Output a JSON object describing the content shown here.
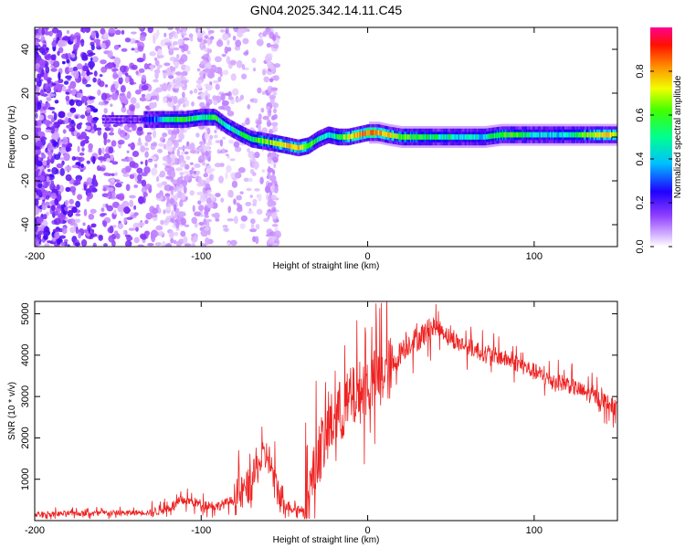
{
  "figure_title": "GN04.2025.342.14.11.C45",
  "chart_data": [
    {
      "type": "heatmap",
      "title": "GN04.2025.342.14.11.C45",
      "xlabel": "Height of straight line (km)",
      "ylabel": "Frequency (Hz)",
      "xlim": [
        -200,
        150
      ],
      "ylim": [
        -50,
        50
      ],
      "xticks": [
        -200,
        -100,
        0,
        100
      ],
      "xtick_labels": [
        "-200",
        "-100",
        "0",
        "100"
      ],
      "yticks": [
        -40,
        -20,
        0,
        20,
        40
      ],
      "ytick_labels": [
        "-40",
        "-20",
        "0",
        "20",
        "40"
      ],
      "colorbar": {
        "label": "Normalized spectral amplitude",
        "range": [
          0,
          1
        ],
        "ticks": [
          0,
          0.2,
          0.4,
          0.6,
          0.8
        ],
        "tick_labels": [
          "0.0",
          "0.2",
          "0.4",
          "0.6",
          "0.8"
        ],
        "colormap": [
          "#ffffff",
          "#b060ff",
          "#6010f0",
          "#0000ff",
          "#00ffff",
          "#00ff00",
          "#ffff00",
          "#ff8000",
          "#ff0000",
          "#ff0080"
        ]
      },
      "ridge_points": [
        {
          "x": -160,
          "y": 8,
          "amp": 0.18
        },
        {
          "x": -150,
          "y": 8,
          "amp": 0.2
        },
        {
          "x": -140,
          "y": 8,
          "amp": 0.22
        },
        {
          "x": -130,
          "y": 8,
          "amp": 0.35
        },
        {
          "x": -120,
          "y": 8,
          "amp": 0.5
        },
        {
          "x": -110,
          "y": 8,
          "amp": 0.55
        },
        {
          "x": -100,
          "y": 9,
          "amp": 0.5
        },
        {
          "x": -92,
          "y": 9,
          "amp": 0.55
        },
        {
          "x": -85,
          "y": 5,
          "amp": 0.45
        },
        {
          "x": -78,
          "y": 2,
          "amp": 0.5
        },
        {
          "x": -70,
          "y": -1,
          "amp": 0.55
        },
        {
          "x": -62,
          "y": -2,
          "amp": 0.6
        },
        {
          "x": -55,
          "y": -3,
          "amp": 0.65
        },
        {
          "x": -48,
          "y": -4,
          "amp": 0.7
        },
        {
          "x": -42,
          "y": -5,
          "amp": 0.72
        },
        {
          "x": -36,
          "y": -4,
          "amp": 0.6
        },
        {
          "x": -30,
          "y": -1,
          "amp": 0.5
        },
        {
          "x": -24,
          "y": 1,
          "amp": 0.45
        },
        {
          "x": -18,
          "y": 0,
          "amp": 0.55
        },
        {
          "x": -12,
          "y": 0,
          "amp": 0.65
        },
        {
          "x": -6,
          "y": 1,
          "amp": 0.75
        },
        {
          "x": 0,
          "y": 2,
          "amp": 0.8
        },
        {
          "x": 6,
          "y": 2,
          "amp": 0.75
        },
        {
          "x": 12,
          "y": 1,
          "amp": 0.7
        },
        {
          "x": 20,
          "y": 0,
          "amp": 0.6
        },
        {
          "x": 30,
          "y": 0,
          "amp": 0.55
        },
        {
          "x": 40,
          "y": 0,
          "amp": 0.5
        },
        {
          "x": 50,
          "y": 0,
          "amp": 0.48
        },
        {
          "x": 60,
          "y": 0,
          "amp": 0.45
        },
        {
          "x": 70,
          "y": 0,
          "amp": 0.45
        },
        {
          "x": 80,
          "y": 1,
          "amp": 0.6
        },
        {
          "x": 90,
          "y": 1,
          "amp": 0.55
        },
        {
          "x": 100,
          "y": 1,
          "amp": 0.45
        },
        {
          "x": 110,
          "y": 1,
          "amp": 0.45
        },
        {
          "x": 120,
          "y": 1,
          "amp": 0.45
        },
        {
          "x": 130,
          "y": 1,
          "amp": 0.6
        },
        {
          "x": 140,
          "y": 1,
          "amp": 0.7
        },
        {
          "x": 150,
          "y": 1,
          "amp": 0.65
        }
      ]
    },
    {
      "type": "line",
      "xlabel": "Height of straight line (km)",
      "ylabel": "SNR (10 * v/v)",
      "xlim": [
        -200,
        150
      ],
      "ylim": [
        0,
        5300
      ],
      "xticks": [
        -200,
        -100,
        0,
        100
      ],
      "xtick_labels": [
        "-200",
        "-100",
        "0",
        "100"
      ],
      "yticks": [
        1000,
        2000,
        3000,
        4000,
        5000
      ],
      "ytick_labels": [
        "1000",
        "2000",
        "3000",
        "4000",
        "5000"
      ],
      "series": [
        {
          "name": "SNR",
          "color": "#ee2222",
          "x": [
            -200,
            -180,
            -160,
            -140,
            -130,
            -120,
            -110,
            -100,
            -90,
            -80,
            -70,
            -65,
            -60,
            -55,
            -50,
            -45,
            -40,
            -35,
            -30,
            -25,
            -20,
            -15,
            -10,
            -5,
            0,
            5,
            10,
            15,
            20,
            25,
            30,
            35,
            40,
            45,
            50,
            60,
            70,
            80,
            90,
            100,
            110,
            120,
            130,
            140,
            150
          ],
          "values": [
            150,
            170,
            180,
            190,
            200,
            300,
            500,
            400,
            350,
            500,
            900,
            1400,
            1600,
            800,
            400,
            300,
            250,
            500,
            1600,
            2000,
            2500,
            2700,
            2900,
            3100,
            3300,
            3400,
            3600,
            3700,
            4100,
            4300,
            4400,
            4550,
            4700,
            4600,
            4400,
            4200,
            4050,
            3950,
            3800,
            3600,
            3400,
            3300,
            3100,
            2950,
            2700
          ]
        }
      ]
    }
  ]
}
